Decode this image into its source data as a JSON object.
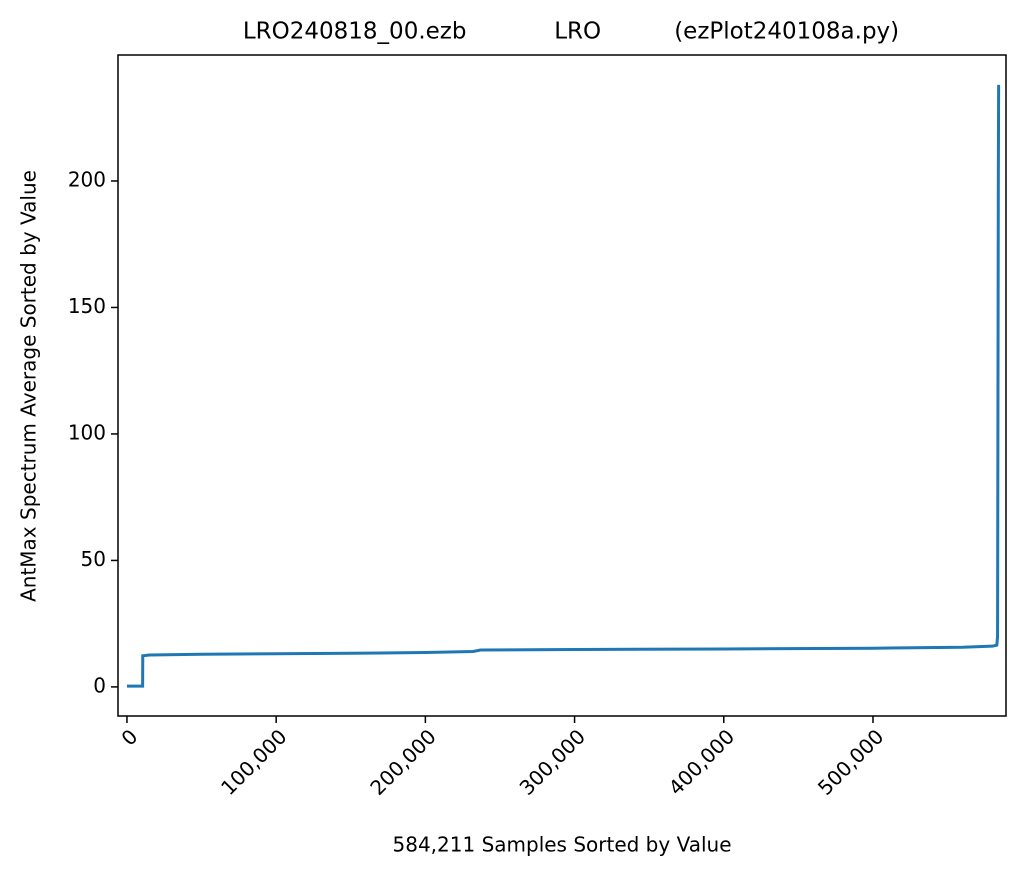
{
  "chart_data": {
    "type": "line",
    "title": "LRO240818_00.ezb            LRO          (ezPlot240108a.py)",
    "x_label": "584,211 Samples Sorted by Value",
    "y_label": "AntMax Spectrum Average Sorted by Value",
    "x": [
      0,
      10500,
      10600,
      15000,
      50000,
      100000,
      150000,
      200000,
      232000,
      237000,
      300000,
      400000,
      500000,
      560000,
      580000,
      583000,
      583500,
      584000,
      584210
    ],
    "series": [
      {
        "color": "#1f77b4",
        "values": [
          0.3,
          0.3,
          12.3,
          12.6,
          12.9,
          13.1,
          13.3,
          13.6,
          14.0,
          14.6,
          14.8,
          15.0,
          15.3,
          15.7,
          16.1,
          16.5,
          20,
          200,
          238
        ]
      }
    ],
    "xlim": [
      -6000,
      589150
    ],
    "xticks": [
      0,
      {
        "value": 100000,
        "label": "100,000"
      },
      {
        "value": 200000,
        "label": "200,000"
      },
      {
        "value": 300000,
        "label": "300,000"
      },
      {
        "value": 400000,
        "label": "400,000"
      },
      {
        "value": 500000,
        "label": "500,000"
      }
    ],
    "ylim": [
      -11.5,
      249.8
    ],
    "yticks": [
      0,
      50,
      100,
      150,
      200
    ]
  }
}
